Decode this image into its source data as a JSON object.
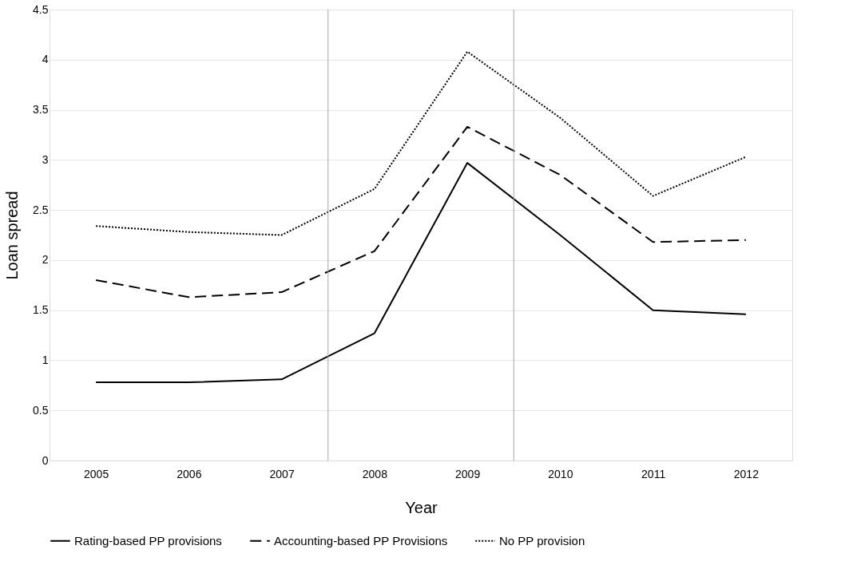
{
  "chart_data": {
    "type": "line",
    "xlabel": "Year",
    "ylabel": "Loan spread",
    "x": [
      2005,
      2006,
      2007,
      2008,
      2009,
      2010,
      2011,
      2012
    ],
    "xlim": [
      2004.5,
      2012.5
    ],
    "xticks": [
      2005,
      2006,
      2007,
      2008,
      2009,
      2010,
      2011,
      2012
    ],
    "ylim": [
      0,
      4.5
    ],
    "yticks": [
      0,
      0.5,
      1,
      1.5,
      2,
      2.5,
      3,
      3.5,
      4,
      4.5
    ],
    "grid": "y",
    "legend": "bottom",
    "marker": "none",
    "ref_lines": [
      {
        "axis": "x",
        "value": 2007.5,
        "color": "#a6a6a6",
        "line_style": "solid"
      },
      {
        "axis": "x",
        "value": 2009.5,
        "color": "#a6a6a6",
        "line_style": "solid"
      }
    ],
    "series": [
      {
        "name": "Rating-based PP provisions",
        "color": "#000000",
        "line_style": "solid",
        "values": [
          0.78,
          0.78,
          0.81,
          1.27,
          2.97,
          2.25,
          1.5,
          1.46
        ]
      },
      {
        "name": "Accounting-based PP Provisions",
        "color": "#000000",
        "line_style": "dashed",
        "values": [
          1.8,
          1.63,
          1.68,
          2.09,
          3.33,
          2.85,
          2.18,
          2.2
        ]
      },
      {
        "name": "No PP provision",
        "color": "#000000",
        "line_style": "dotted",
        "values": [
          2.34,
          2.28,
          2.25,
          2.71,
          4.08,
          3.42,
          2.64,
          3.03
        ]
      }
    ]
  }
}
